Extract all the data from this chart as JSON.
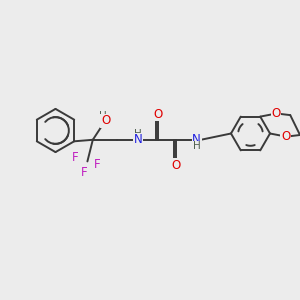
{
  "bg": "#ececec",
  "bc": "#3a3a3a",
  "bw": 1.4,
  "colors": {
    "O": "#e00000",
    "N": "#2020e0",
    "F": "#c020c0",
    "H": "#506050",
    "C": "#3a3a3a"
  },
  "figsize": [
    3.0,
    3.0
  ],
  "dpi": 100
}
